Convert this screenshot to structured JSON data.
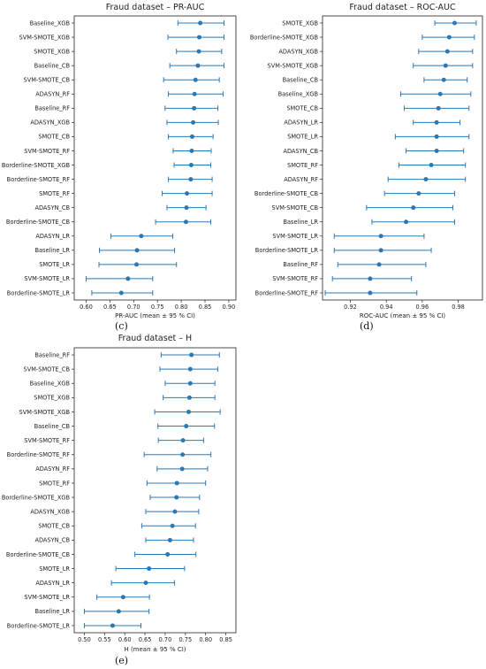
{
  "chart_data": [
    {
      "id": "c",
      "type": "scatter",
      "title": "Fraud dataset – PR-AUC",
      "xlabel": "PR-AUC (mean ± 95 % CI)",
      "ylabel": "",
      "xlim": [
        0.575,
        0.915
      ],
      "xticks": [
        "0.60",
        "0.65",
        "0.70",
        "0.75",
        "0.80",
        "0.85",
        "0.90"
      ],
      "caption": "(c)",
      "color": "#2d78b1",
      "grid": false,
      "categories": [
        "Baseline_XGB",
        "SVM-SMOTE_XGB",
        "SMOTE_XGB",
        "Baseline_CB",
        "SVM-SMOTE_CB",
        "ADASYN_RF",
        "Baseline_RF",
        "ADASYN_XGB",
        "SMOTE_CB",
        "SVM-SMOTE_RF",
        "Borderline-SMOTE_XGB",
        "Borderline-SMOTE_RF",
        "SMOTE_RF",
        "ADASYN_CB",
        "Borderline-SMOTE_CB",
        "ADASYN_LR",
        "Baseline_LR",
        "SMOTE_LR",
        "SVM-SMOTE_LR",
        "Borderline-SMOTE_LR"
      ],
      "mean": [
        0.84,
        0.838,
        0.837,
        0.835,
        0.83,
        0.828,
        0.827,
        0.825,
        0.823,
        0.822,
        0.821,
        0.82,
        0.812,
        0.811,
        0.81,
        0.716,
        0.707,
        0.706,
        0.688,
        0.674
      ],
      "lower": [
        0.793,
        0.772,
        0.79,
        0.776,
        0.763,
        0.773,
        0.766,
        0.77,
        0.773,
        0.783,
        0.785,
        0.773,
        0.76,
        0.77,
        0.746,
        0.652,
        0.628,
        0.627,
        0.6,
        0.612
      ],
      "upper": [
        0.89,
        0.89,
        0.885,
        0.89,
        0.88,
        0.888,
        0.877,
        0.878,
        0.867,
        0.863,
        0.862,
        0.865,
        0.865,
        0.852,
        0.862,
        0.782,
        0.786,
        0.79,
        0.74,
        0.74
      ]
    },
    {
      "id": "d",
      "type": "scatter",
      "title": "Fraud dataset – ROC-AUC",
      "xlabel": "ROC-AUC (mean ± 95 % CI)",
      "ylabel": "",
      "xlim": [
        0.9045,
        0.9935
      ],
      "xticks": [
        "0.92",
        "0.94",
        "0.96",
        "0.98"
      ],
      "caption": "(d)",
      "color": "#2d78b1",
      "grid": false,
      "categories": [
        "SMOTE_XGB",
        "Borderline-SMOTE_XGB",
        "ADASYN_XGB",
        "SVM-SMOTE_XGB",
        "Baseline_CB",
        "Baseline_XGB",
        "SMOTE_CB",
        "ADASYN_LR",
        "SMOTE_LR",
        "ADASYN_CB",
        "SMOTE_RF",
        "ADASYN_RF",
        "Borderline-SMOTE_CB",
        "SVM-SMOTE_CB",
        "Baseline_LR",
        "SVM-SMOTE_LR",
        "Borderline-SMOTE_LR",
        "Baseline_RF",
        "SVM-SMOTE_RF",
        "Borderline-SMOTE_RF"
      ],
      "mean": [
        0.978,
        0.975,
        0.974,
        0.973,
        0.972,
        0.97,
        0.969,
        0.968,
        0.968,
        0.968,
        0.965,
        0.962,
        0.958,
        0.955,
        0.951,
        0.937,
        0.937,
        0.936,
        0.931,
        0.931
      ],
      "lower": [
        0.967,
        0.96,
        0.958,
        0.955,
        0.961,
        0.948,
        0.95,
        0.955,
        0.945,
        0.951,
        0.947,
        0.941,
        0.939,
        0.929,
        0.932,
        0.911,
        0.911,
        0.913,
        0.91,
        0.906
      ],
      "upper": [
        0.99,
        0.989,
        0.988,
        0.988,
        0.985,
        0.987,
        0.986,
        0.981,
        0.986,
        0.983,
        0.984,
        0.984,
        0.978,
        0.977,
        0.978,
        0.961,
        0.965,
        0.962,
        0.954,
        0.957
      ]
    },
    {
      "id": "e",
      "type": "scatter",
      "title": "Fraud dataset – H",
      "xlabel": "H (mean ± 95 % CI)",
      "ylabel": "",
      "xlim": [
        0.475,
        0.875
      ],
      "xticks": [
        "0.50",
        "0.55",
        "0.60",
        "0.65",
        "0.70",
        "0.75",
        "0.80",
        "0.85"
      ],
      "caption": "(e)",
      "color": "#2d78b1",
      "grid": false,
      "categories": [
        "Baseline_RF",
        "SVM-SMOTE_CB",
        "Baseline_XGB",
        "SMOTE_XGB",
        "SVM-SMOTE_XGB",
        "Baseline_CB",
        "SVM-SMOTE_RF",
        "Borderline-SMOTE_RF",
        "ADASYN_RF",
        "SMOTE_RF",
        "Borderline-SMOTE_XGB",
        "ADASYN_XGB",
        "SMOTE_CB",
        "ADASYN_CB",
        "Borderline-SMOTE_CB",
        "SMOTE_LR",
        "ADASYN_LR",
        "SVM-SMOTE_LR",
        "Baseline_LR",
        "Borderline-SMOTE_LR"
      ],
      "mean": [
        0.765,
        0.762,
        0.762,
        0.76,
        0.758,
        0.752,
        0.744,
        0.743,
        0.742,
        0.729,
        0.728,
        0.724,
        0.718,
        0.712,
        0.706,
        0.66,
        0.652,
        0.596,
        0.585,
        0.57
      ],
      "lower": [
        0.69,
        0.687,
        0.7,
        0.695,
        0.674,
        0.682,
        0.683,
        0.648,
        0.68,
        0.655,
        0.663,
        0.652,
        0.642,
        0.652,
        0.625,
        0.578,
        0.567,
        0.531,
        0.5,
        0.5
      ],
      "upper": [
        0.834,
        0.83,
        0.823,
        0.823,
        0.836,
        0.822,
        0.795,
        0.813,
        0.805,
        0.8,
        0.785,
        0.783,
        0.775,
        0.77,
        0.776,
        0.748,
        0.723,
        0.661,
        0.66,
        0.64
      ]
    }
  ]
}
